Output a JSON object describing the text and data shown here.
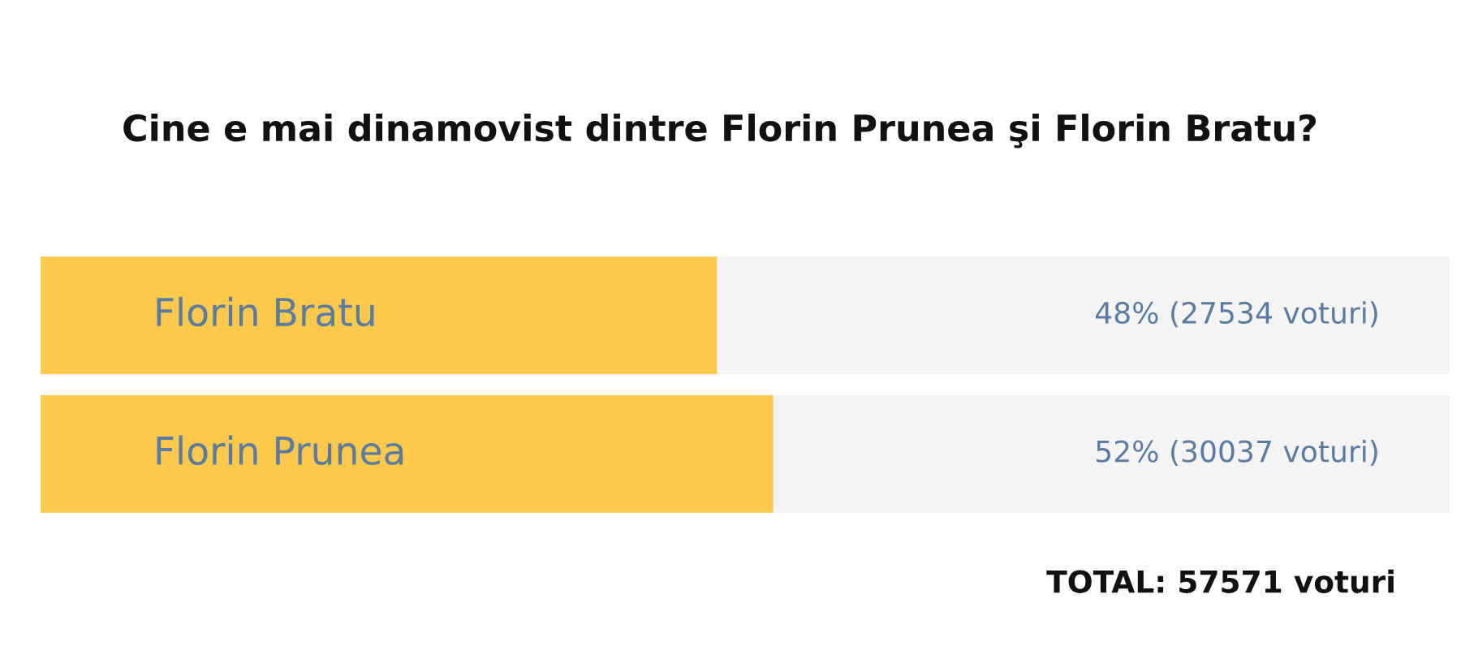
{
  "chart_data": {
    "type": "bar",
    "orientation": "horizontal",
    "title": "Cine e mai dinamovist dintre Florin Prunea şi Florin Bratu?",
    "categories": [
      "Florin Bratu",
      "Florin Prunea"
    ],
    "values": [
      48,
      52
    ],
    "value_labels": [
      "48% (27534 voturi)",
      "52% (30037 voturi)"
    ],
    "color": "#fcc94c",
    "xlim": [
      0,
      100
    ],
    "tick_labels": false,
    "annotations": [
      "TOTAL: 57571 voturi"
    ]
  }
}
